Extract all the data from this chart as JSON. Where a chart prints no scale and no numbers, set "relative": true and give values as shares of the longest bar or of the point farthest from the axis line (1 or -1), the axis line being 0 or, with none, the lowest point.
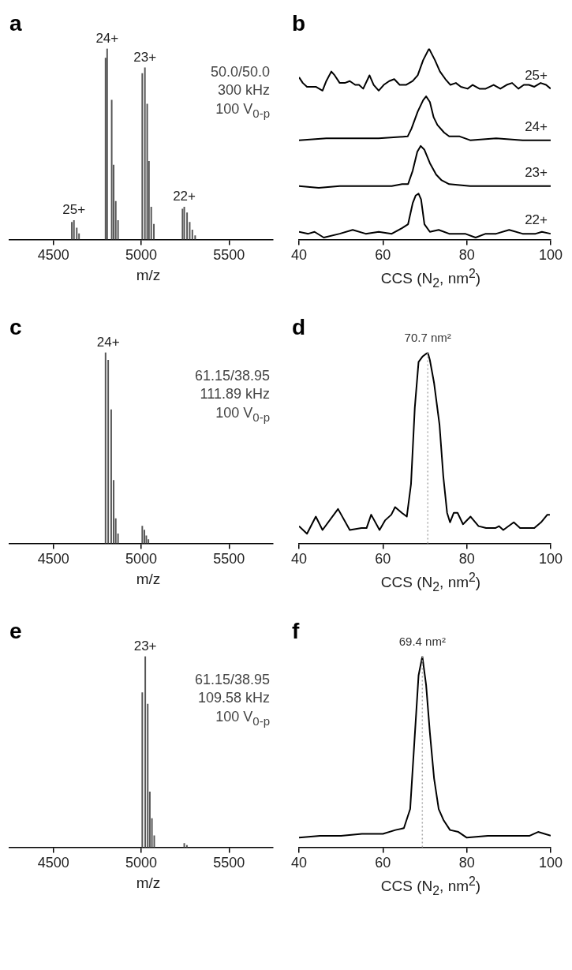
{
  "chart_data": [
    {
      "type": "bar",
      "title": "a",
      "relative": true,
      "xlabel": "m/z",
      "xlim": [
        4250,
        5750
      ],
      "xticks": [
        4500,
        5000,
        5500
      ],
      "color": "#555555",
      "x": [
        4605,
        4617,
        4633,
        4646,
        4797,
        4806,
        4832,
        4843,
        4855,
        4868,
        5006,
        5021,
        5034,
        5044,
        5057,
        5072,
        5235,
        5245,
        5261,
        5276,
        5291,
        5307
      ],
      "values": [
        0.09,
        0.1,
        0.06,
        0.03,
        0.95,
        1,
        0.73,
        0.39,
        0.2,
        0.1,
        0.87,
        0.9,
        0.71,
        0.41,
        0.17,
        0.08,
        0.16,
        0.17,
        0.14,
        0.09,
        0.05,
        0.02
      ],
      "annotations": [
        {
          "text": "25+",
          "x": 4617,
          "y": 0.1
        },
        {
          "text": "24+",
          "x": 4806,
          "y": 1
        },
        {
          "text": "23+",
          "x": 5021,
          "y": 0.9
        },
        {
          "text": "22+",
          "x": 5245,
          "y": 0.17
        },
        "50.0/50.0",
        "300 kHz",
        "100 V$_{0-p}$"
      ]
    },
    {
      "type": "line",
      "title": "b",
      "relative": true,
      "xlabel": "CCS (N$_{2}$, nm$^{2}$)",
      "xlim": [
        40,
        100
      ],
      "xticks": [
        40,
        60,
        80,
        100
      ],
      "series": [
        {
          "name": "25+",
          "color": "#000000",
          "x": [
            40,
            40.9,
            41.9,
            42.8,
            44,
            45.6,
            46.5,
            47.7,
            48.5,
            49.7,
            50.9,
            52.1,
            53.4,
            54.3,
            55.3,
            56.8,
            57.8,
            59,
            60.2,
            61.5,
            62.7,
            64,
            65.5,
            67.1,
            68.3,
            69.6,
            71,
            72.4,
            73.6,
            74.9,
            76.1,
            77.4,
            78.6,
            80.2,
            81.4,
            83,
            84.5,
            86.4,
            88,
            89.5,
            90.8,
            92.3,
            93.6,
            94.8,
            96.1,
            97.6,
            98.9,
            100
          ],
          "values": [
            0.85,
            0.82,
            0.8,
            0.8,
            0.8,
            0.78,
            0.83,
            0.88,
            0.86,
            0.82,
            0.82,
            0.83,
            0.81,
            0.81,
            0.79,
            0.86,
            0.81,
            0.78,
            0.81,
            0.83,
            0.84,
            0.81,
            0.81,
            0.83,
            0.86,
            0.94,
            1,
            0.94,
            0.88,
            0.84,
            0.81,
            0.82,
            0.8,
            0.79,
            0.81,
            0.79,
            0.79,
            0.81,
            0.79,
            0.81,
            0.82,
            0.79,
            0.81,
            0.81,
            0.8,
            0.82,
            0.81,
            0.79
          ]
        },
        {
          "name": "24+",
          "color": "#000000",
          "x": [
            40,
            46.5,
            52.8,
            59,
            65.9,
            66.8,
            68.3,
            69.6,
            70.3,
            71.2,
            72.1,
            73,
            74.6,
            75.8,
            78.3,
            80.8,
            87,
            93.3,
            100
          ],
          "values": [
            0.52,
            0.53,
            0.53,
            0.53,
            0.54,
            0.58,
            0.67,
            0.73,
            0.75,
            0.72,
            0.64,
            0.6,
            0.56,
            0.54,
            0.54,
            0.52,
            0.53,
            0.52,
            0.52
          ]
        },
        {
          "name": "23+",
          "color": "#000000",
          "x": [
            40,
            44.7,
            49.7,
            55.9,
            62.1,
            64.6,
            66,
            67.1,
            68.2,
            69,
            69.9,
            71.2,
            72.7,
            74,
            75.8,
            80.8,
            87,
            93.3,
            100
          ],
          "values": [
            0.28,
            0.27,
            0.28,
            0.28,
            0.28,
            0.29,
            0.29,
            0.36,
            0.46,
            0.49,
            0.47,
            0.4,
            0.34,
            0.31,
            0.29,
            0.28,
            0.28,
            0.28,
            0.28
          ]
        },
        {
          "name": "22+",
          "color": "#000000",
          "x": [
            40,
            42.2,
            43.7,
            45.9,
            49.7,
            52.8,
            55.9,
            59,
            62.1,
            64.6,
            66,
            67.1,
            67.8,
            68.5,
            69.1,
            69.9,
            71.2,
            73.3,
            75.8,
            79.6,
            82.1,
            84.5,
            87,
            90.1,
            93.3,
            96.4,
            97.9,
            100
          ],
          "values": [
            0.04,
            0.03,
            0.04,
            0.01,
            0.03,
            0.05,
            0.03,
            0.04,
            0.03,
            0.06,
            0.08,
            0.19,
            0.23,
            0.24,
            0.21,
            0.08,
            0.04,
            0.05,
            0.03,
            0.03,
            0.01,
            0.03,
            0.03,
            0.05,
            0.03,
            0.03,
            0.04,
            0.03
          ]
        }
      ]
    },
    {
      "type": "bar",
      "title": "c",
      "relative": true,
      "xlabel": "m/z",
      "xlim": [
        4250,
        5750
      ],
      "xticks": [
        4500,
        5000,
        5500
      ],
      "color": "#555555",
      "x": [
        4797,
        4812,
        4829,
        4843,
        4855,
        4868,
        5006,
        5018,
        5029,
        5041
      ],
      "values": [
        1,
        0.96,
        0.7,
        0.33,
        0.13,
        0.05,
        0.09,
        0.07,
        0.04,
        0.02
      ],
      "annotations": [
        {
          "text": "24+",
          "x": 4812,
          "y": 1
        },
        "61.15/38.95",
        "111.89 kHz",
        "100 V$_{0-p}$"
      ]
    },
    {
      "type": "line",
      "title": "d",
      "relative": true,
      "xlabel": "CCS (N$_{2}$, nm$^{2}$)",
      "xlim": [
        40,
        100
      ],
      "xticks": [
        40,
        60,
        80,
        100
      ],
      "color": "#000000",
      "x": [
        40,
        41.9,
        44,
        45.6,
        49.3,
        52.1,
        54.9,
        56.1,
        57.2,
        59.2,
        60.5,
        62,
        62.9,
        64.5,
        65.7,
        66.7,
        67.6,
        68.5,
        69.5,
        70.7,
        71.2,
        72.2,
        73.5,
        74.4,
        75.3,
        76,
        76.9,
        77.8,
        79.1,
        80.9,
        82.8,
        84.6,
        86.8,
        87.7,
        88.7,
        91.2,
        92.7,
        96.1,
        97.7,
        99.2,
        99.8
      ],
      "values": [
        0.09,
        0.05,
        0.14,
        0.07,
        0.18,
        0.07,
        0.08,
        0.08,
        0.15,
        0.07,
        0.12,
        0.15,
        0.19,
        0.16,
        0.14,
        0.31,
        0.71,
        0.95,
        0.98,
        1,
        0.96,
        0.84,
        0.62,
        0.35,
        0.16,
        0.11,
        0.16,
        0.16,
        0.1,
        0.14,
        0.09,
        0.08,
        0.08,
        0.09,
        0.07,
        0.11,
        0.08,
        0.08,
        0.11,
        0.15,
        0.15
      ],
      "ref_lines": [
        {
          "axis": "x",
          "value": 70.7,
          "label": "70.7 nm²",
          "color": "#aaaaaa",
          "line_style": "dotted"
        }
      ]
    },
    {
      "type": "bar",
      "title": "e",
      "relative": true,
      "xlabel": "m/z",
      "xlim": [
        4250,
        5750
      ],
      "xticks": [
        4500,
        5000,
        5500
      ],
      "color": "#555555",
      "x": [
        5006,
        5023,
        5037,
        5049,
        5061,
        5074,
        5245,
        5260
      ],
      "values": [
        0.81,
        1,
        0.75,
        0.29,
        0.15,
        0.06,
        0.02,
        0.01
      ],
      "annotations": [
        {
          "text": "23+",
          "x": 5023,
          "y": 1
        },
        "61.15/38.95",
        "109.58 kHz",
        "100 V$_{0-p}$"
      ]
    },
    {
      "type": "line",
      "title": "f",
      "relative": true,
      "xlabel": "CCS (N$_{2}$, nm$^{2}$)",
      "xlim": [
        40,
        100
      ],
      "xticks": [
        40,
        60,
        80,
        100
      ],
      "color": "#000000",
      "x": [
        40,
        45,
        50,
        55,
        60,
        63,
        65,
        66.5,
        67.5,
        68.5,
        69.4,
        70.3,
        71.2,
        72.2,
        73.3,
        74.5,
        76,
        78,
        80,
        85,
        90,
        95,
        97,
        100
      ],
      "values": [
        0.05,
        0.06,
        0.06,
        0.07,
        0.07,
        0.09,
        0.1,
        0.2,
        0.55,
        0.9,
        1,
        0.85,
        0.6,
        0.36,
        0.2,
        0.14,
        0.09,
        0.08,
        0.05,
        0.06,
        0.06,
        0.06,
        0.08,
        0.06
      ],
      "ref_lines": [
        {
          "axis": "x",
          "value": 69.4,
          "label": "69.4 nm²",
          "color": "#aaaaaa",
          "line_style": "dotted"
        }
      ]
    }
  ]
}
